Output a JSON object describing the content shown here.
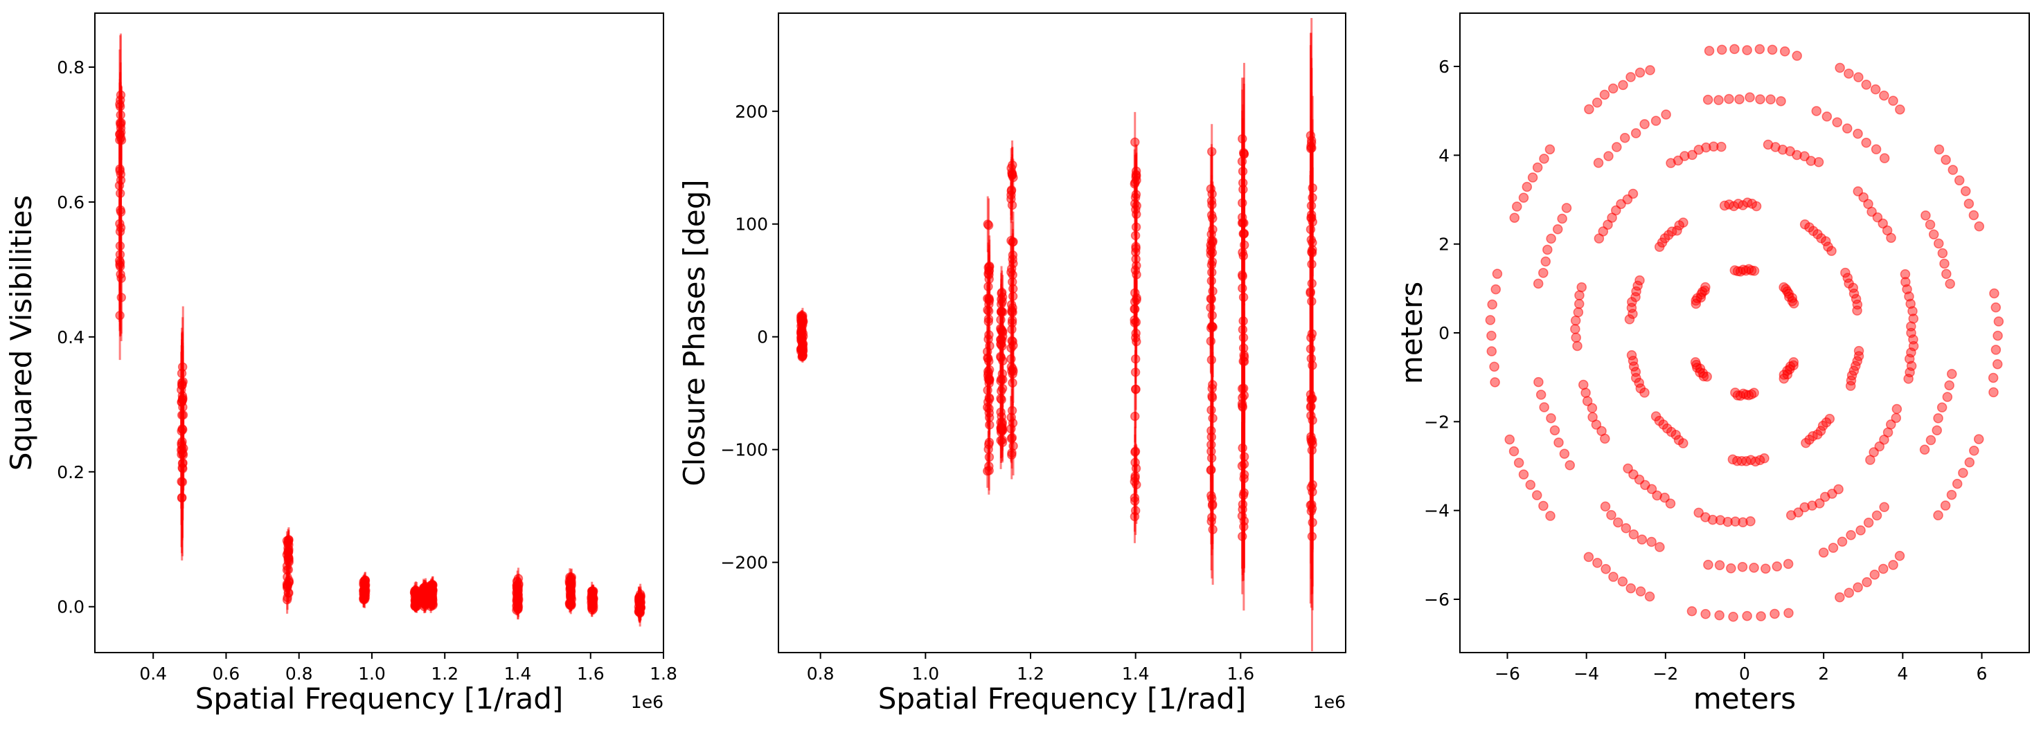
{
  "chart_data": [
    {
      "type": "scatter",
      "error_bars": true,
      "color": "#ff0000",
      "xlabel": "Spatial Frequency [1/rad]",
      "ylabel": "Squared Visibilities",
      "x_offset_label": "1e6",
      "xlim": [
        0.24,
        1.8
      ],
      "ylim": [
        -0.068,
        0.88
      ],
      "xticks": [
        0.4,
        0.6,
        0.8,
        1.0,
        1.2,
        1.4,
        1.6,
        1.8
      ],
      "xtick_labels": [
        "0.4",
        "0.6",
        "0.8",
        "1.0",
        "1.2",
        "1.4",
        "1.6",
        "1.8"
      ],
      "yticks": [
        0.0,
        0.2,
        0.4,
        0.6,
        0.8
      ],
      "ytick_labels": [
        "0.0",
        "0.2",
        "0.4",
        "0.6",
        "0.8"
      ],
      "clusters": [
        {
          "x": 0.31,
          "y_min": 0.43,
          "y_max": 0.76,
          "err": 0.08
        },
        {
          "x": 0.48,
          "y_min": 0.16,
          "y_max": 0.37,
          "err": 0.08
        },
        {
          "x": 0.77,
          "y_min": 0.01,
          "y_max": 0.1,
          "err": 0.015
        },
        {
          "x": 0.98,
          "y_min": 0.01,
          "y_max": 0.04,
          "err": 0.01
        },
        {
          "x": 1.12,
          "y_min": 0.0,
          "y_max": 0.025,
          "err": 0.01
        },
        {
          "x": 1.145,
          "y_min": 0.0,
          "y_max": 0.03,
          "err": 0.01
        },
        {
          "x": 1.165,
          "y_min": 0.0,
          "y_max": 0.035,
          "err": 0.01
        },
        {
          "x": 1.4,
          "y_min": -0.005,
          "y_max": 0.045,
          "err": 0.012
        },
        {
          "x": 1.545,
          "y_min": 0.0,
          "y_max": 0.045,
          "err": 0.012
        },
        {
          "x": 1.605,
          "y_min": -0.005,
          "y_max": 0.025,
          "err": 0.01
        },
        {
          "x": 1.735,
          "y_min": -0.01,
          "y_max": 0.02,
          "err": 0.015
        }
      ]
    },
    {
      "type": "scatter",
      "error_bars": true,
      "color": "#ff0000",
      "xlabel": "Spatial Frequency [1/rad]",
      "ylabel": "Closure Phases [deg]",
      "x_offset_label": "1e6",
      "xlim": [
        0.72,
        1.8
      ],
      "ylim": [
        -280,
        287
      ],
      "xticks": [
        0.8,
        1.0,
        1.2,
        1.4,
        1.6
      ],
      "xtick_labels": [
        "0.8",
        "1.0",
        "1.2",
        "1.4",
        "1.6"
      ],
      "yticks": [
        -200,
        -100,
        0,
        100,
        200
      ],
      "ytick_labels": [
        "−200",
        "−100",
        "0",
        "100",
        "200"
      ],
      "clusters": [
        {
          "x": 0.765,
          "y_min": -18,
          "y_max": 20,
          "err": 5
        },
        {
          "x": 1.12,
          "y_min": -120,
          "y_max": 100,
          "err": 20
        },
        {
          "x": 1.145,
          "y_min": -100,
          "y_max": 40,
          "err": 20
        },
        {
          "x": 1.165,
          "y_min": -110,
          "y_max": 160,
          "err": 22
        },
        {
          "x": 1.4,
          "y_min": -160,
          "y_max": 180,
          "err": 25
        },
        {
          "x": 1.545,
          "y_min": -180,
          "y_max": 165,
          "err": 40
        },
        {
          "x": 1.605,
          "y_min": -180,
          "y_max": 180,
          "err": 60
        },
        {
          "x": 1.735,
          "y_min": -180,
          "y_max": 180,
          "err": 80
        }
      ]
    },
    {
      "type": "scatter",
      "color": "#ff0000",
      "xlabel": "meters",
      "ylabel": "meters",
      "xlim": [
        -7.2,
        7.2
      ],
      "ylim": [
        -7.2,
        7.2
      ],
      "xticks": [
        -6,
        -4,
        -2,
        0,
        2,
        4,
        6
      ],
      "xtick_labels": [
        "−6",
        "−4",
        "−2",
        "0",
        "2",
        "4",
        "6"
      ],
      "yticks": [
        -6,
        -4,
        -2,
        0,
        2,
        4,
        6
      ],
      "ytick_labels": [
        "−6",
        "−4",
        "−2",
        "0",
        "2",
        "4",
        "6"
      ],
      "rings": [
        {
          "radius": 1.4,
          "arcs": [
            [
              28,
              46
            ],
            [
              80,
              100
            ],
            [
              134,
              152
            ],
            [
              208,
              226
            ],
            [
              260,
              280
            ],
            [
              314,
              332
            ]
          ]
        },
        {
          "radius": 2.9,
          "arcs": [
            [
              10,
              28
            ],
            [
              40,
              58
            ],
            [
              84,
              100
            ],
            [
              122,
              138
            ],
            [
              156,
              174
            ],
            [
              190,
              208
            ],
            [
              220,
              238
            ],
            [
              264,
              280
            ],
            [
              302,
              318
            ],
            [
              336,
              352
            ]
          ]
        },
        {
          "radius": 4.25,
          "arcs": [
            [
              2,
              18
            ],
            [
              30,
              48
            ],
            [
              64,
              82
            ],
            [
              98,
              116
            ],
            [
              132,
              150
            ],
            [
              166,
              184
            ],
            [
              196,
              214
            ],
            [
              226,
              244
            ],
            [
              254,
              272
            ],
            [
              286,
              304
            ],
            [
              318,
              336
            ],
            [
              346,
              360
            ]
          ]
        },
        {
          "radius": 5.3,
          "arcs": [
            [
              12,
              30
            ],
            [
              48,
              70
            ],
            [
              80,
              100
            ],
            [
              112,
              134
            ],
            [
              148,
              168
            ],
            [
              192,
              214
            ],
            [
              228,
              246
            ],
            [
              260,
              282
            ],
            [
              292,
              312
            ],
            [
              330,
              350
            ]
          ]
        },
        {
          "radius": 6.4,
          "arcs": [
            [
              -12,
              8
            ],
            [
              22,
              40
            ],
            [
              52,
              68
            ],
            [
              78,
              98
            ],
            [
              112,
              128
            ],
            [
              140,
              156
            ],
            [
              168,
              190
            ],
            [
              202,
              220
            ],
            [
              232,
              248
            ],
            [
              258,
              280
            ],
            [
              292,
              308
            ],
            [
              320,
              338
            ]
          ]
        }
      ]
    }
  ]
}
